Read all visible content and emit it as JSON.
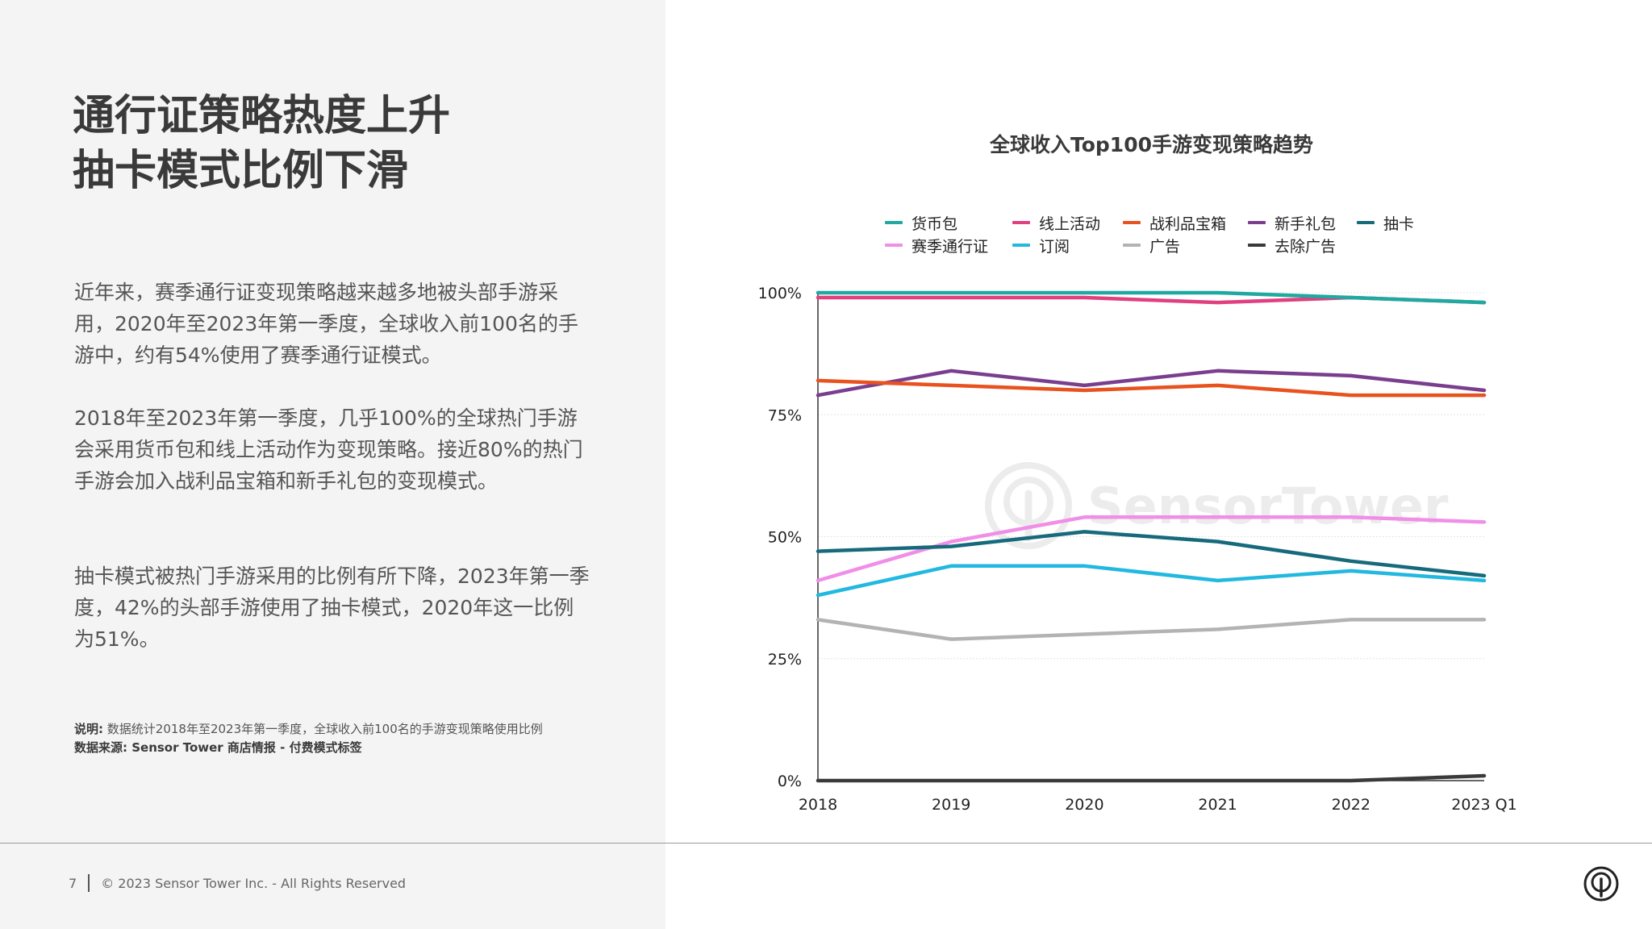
{
  "title": {
    "line1": "通行证策略热度上升",
    "line2": "抽卡模式比例下滑"
  },
  "paragraphs": [
    "近年来，赛季通行证变现策略越来越多地被头部手游采用，2020年至2023年第一季度，全球收入前100名的手游中，约有54%使用了赛季通行证模式。",
    "2018年至2023年第一季度，几乎100%的全球热门手游会采用货币包和线上活动作为变现策略。接近80%的热门手游会加入战利品宝箱和新手礼包的变现模式。",
    "抽卡模式被热门手游采用的比例有所下降，2023年第一季度，42%的头部手游使用了抽卡模式，2020年这一比例为51%。"
  ],
  "note": {
    "label": "说明:",
    "text": "数据统计2018年至2023年第一季度，全球收入前100名的手游变现策略使用比例"
  },
  "source": "数据来源: Sensor Tower 商店情报 - 付费模式标签",
  "footer": {
    "page_number": "7",
    "copyright": "© 2023 Sensor Tower Inc. - All Rights Reserved"
  },
  "watermark_text": "SensorTower",
  "chart_data": {
    "type": "line",
    "title": "全球收入Top100手游变现策略趋势",
    "x": [
      "2018",
      "2019",
      "2020",
      "2021",
      "2022",
      "2023 Q1"
    ],
    "yticks": [
      "0%",
      "25%",
      "50%",
      "75%",
      "100%"
    ],
    "ylim": [
      0,
      100
    ],
    "grid": true,
    "legend_position": "top",
    "series": [
      {
        "name": "货币包",
        "color": "#1fa9a0",
        "values": [
          100,
          100,
          100,
          100,
          99,
          98
        ]
      },
      {
        "name": "线上活动",
        "color": "#e0407f",
        "values": [
          99,
          99,
          99,
          98,
          99,
          98
        ]
      },
      {
        "name": "战利品宝箱",
        "color": "#e8521f",
        "values": [
          82,
          81,
          80,
          81,
          79,
          79
        ]
      },
      {
        "name": "新手礼包",
        "color": "#7a3e8e",
        "values": [
          79,
          84,
          81,
          84,
          83,
          80
        ]
      },
      {
        "name": "抽卡",
        "color": "#166a7c",
        "values": [
          47,
          48,
          51,
          49,
          45,
          42
        ]
      },
      {
        "name": "赛季通行证",
        "color": "#f08ee8",
        "values": [
          41,
          49,
          54,
          54,
          54,
          53
        ]
      },
      {
        "name": "订阅",
        "color": "#22b8e0",
        "values": [
          38,
          44,
          44,
          41,
          43,
          41
        ]
      },
      {
        "name": "广告",
        "color": "#b3b3b3",
        "values": [
          33,
          29,
          30,
          31,
          33,
          33
        ]
      },
      {
        "name": "去除广告",
        "color": "#3a3a3a",
        "values": [
          0,
          0,
          0,
          0,
          0,
          1
        ]
      }
    ]
  }
}
